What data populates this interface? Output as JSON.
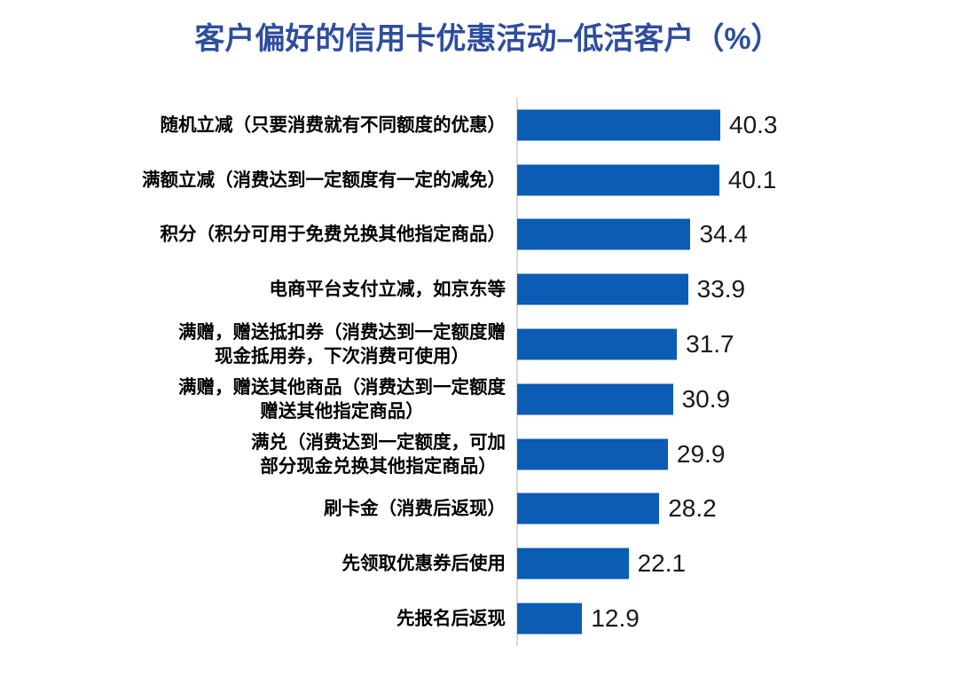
{
  "chart_data": {
    "type": "bar",
    "orientation": "horizontal",
    "title": "客户偏好的信用卡优惠活动–低活客户（%）",
    "categories": [
      "随机立减（只要消费就有不同额度的优惠）",
      "满额立减（消费达到一定额度有一定的减免）",
      "积分（积分可用于免费兑换其他指定商品）",
      "电商平台支付立减，如京东等",
      "满赠，赠送抵扣券（消费达到一定额度赠\n现金抵用券，下次消费可使用）",
      "满赠，赠送其他商品（消费达到一定额度\n赠送其他指定商品）",
      "满兑（消费达到一定额度，可加\n部分现金兑换其他指定商品）",
      "刷卡金（消费后返现）",
      "先领取优惠券后使用",
      "先报名后返现"
    ],
    "values": [
      40.3,
      40.1,
      34.4,
      33.9,
      31.7,
      30.9,
      29.9,
      28.2,
      22.1,
      12.9
    ],
    "value_labels": [
      "40.3",
      "40.1",
      "34.4",
      "33.9",
      "31.7",
      "30.9",
      "29.9",
      "28.2",
      "22.1",
      "12.9"
    ],
    "xlabel": "",
    "ylabel": "",
    "xlim": [
      0,
      45
    ],
    "grid": false,
    "legend": false,
    "colors": {
      "bar": "#0B5CB5",
      "title": "#2E4D9E",
      "axis_line": "#D9D9D9",
      "value_label": "#1a1a1a",
      "category_label": "#000000"
    }
  }
}
